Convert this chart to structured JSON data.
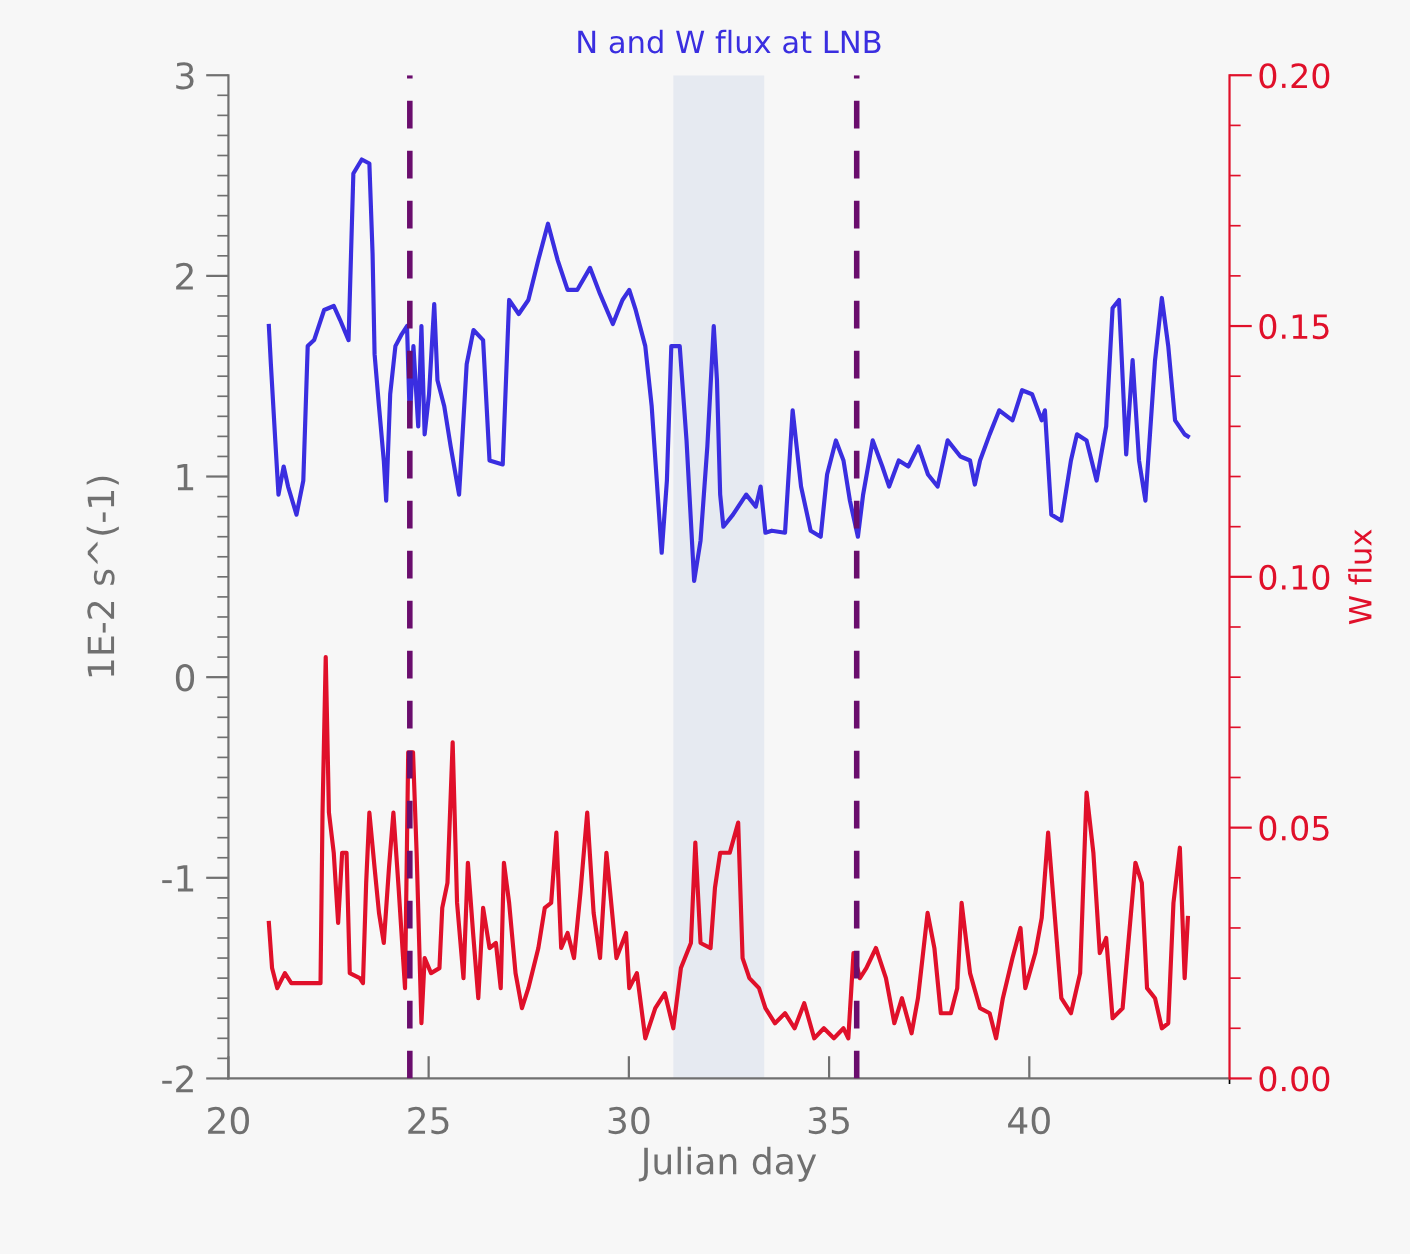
{
  "chart_data": {
    "type": "line",
    "title": "N and W flux at LNB",
    "xlabel": "Julian day",
    "ylabel": "1E-2 s^(-1)",
    "y2label": "W flux",
    "xlim": [
      20,
      45
    ],
    "xticks": [
      20,
      25,
      30,
      35,
      40
    ],
    "ylim": [
      -2,
      3
    ],
    "yticks": [
      -2,
      -1,
      0,
      1,
      2,
      3
    ],
    "y2lim": [
      0,
      0.2
    ],
    "y2ticks": [
      {
        "value": 0,
        "label": "0.00"
      },
      {
        "value": 0.05,
        "label": "0.05"
      },
      {
        "value": 0.1,
        "label": "0.10"
      },
      {
        "value": 0.15,
        "label": "0.15"
      },
      {
        "value": 0.2,
        "label": "0.20"
      }
    ],
    "grid": false,
    "legend": false,
    "marker": "none",
    "line_style": "solid",
    "ref_lines": [
      {
        "axis": "x",
        "value": 24.53,
        "color": "#6a0d6d",
        "line_style": "dashed"
      },
      {
        "axis": "x",
        "value": 35.69,
        "color": "#6a0d6d",
        "line_style": "dashed"
      }
    ],
    "bands": [
      {
        "axis": "x",
        "from": 31.11,
        "to": 33.38,
        "color": "#e6eaf1"
      }
    ],
    "series": [
      {
        "color": "#3a2ee0",
        "x": [
          21.01,
          21.06,
          21.17,
          21.25,
          21.38,
          21.49,
          21.7,
          21.87,
          21.98,
          22.14,
          22.39,
          22.63,
          22.79,
          23.0,
          23.12,
          23.33,
          23.52,
          23.6,
          23.65,
          23.76,
          23.88,
          23.94,
          24.04,
          24.17,
          24.33,
          24.46,
          24.53,
          24.62,
          24.74,
          24.82,
          24.9,
          25.01,
          25.14,
          25.22,
          25.39,
          25.55,
          25.76,
          25.95,
          26.12,
          26.36,
          26.52,
          26.85,
          27.01,
          27.25,
          27.49,
          27.74,
          27.98,
          28.22,
          28.47,
          28.71,
          29.03,
          29.28,
          29.6,
          29.84,
          30.01,
          30.17,
          30.41,
          30.57,
          30.82,
          30.95,
          31.06,
          31.27,
          31.44,
          31.63,
          31.79,
          31.96,
          32.12,
          32.2,
          32.28,
          32.36,
          32.6,
          32.93,
          33.17,
          33.29,
          33.41,
          33.57,
          33.9,
          34.09,
          34.3,
          34.54,
          34.79,
          34.95,
          35.17,
          35.36,
          35.52,
          35.72,
          35.85,
          36.09,
          36.33,
          36.5,
          36.74,
          36.98,
          37.23,
          37.47,
          37.71,
          37.96,
          38.28,
          38.52,
          38.64,
          38.77,
          39.01,
          39.25,
          39.58,
          39.82,
          40.07,
          40.31,
          40.39,
          40.55,
          40.8,
          41.04,
          41.19,
          41.43,
          41.68,
          41.92,
          42.08,
          42.24,
          42.42,
          42.58,
          42.74,
          42.9,
          43.14,
          43.31,
          43.47,
          43.64,
          43.88,
          43.96
        ],
        "values": [
          1.75,
          1.56,
          1.18,
          0.91,
          1.05,
          0.95,
          0.81,
          0.98,
          1.65,
          1.68,
          1.83,
          1.85,
          1.78,
          1.68,
          2.51,
          2.58,
          2.56,
          2.11,
          1.61,
          1.35,
          1.08,
          0.88,
          1.41,
          1.65,
          1.71,
          1.75,
          1.28,
          1.65,
          1.25,
          1.75,
          1.21,
          1.41,
          1.86,
          1.48,
          1.35,
          1.15,
          0.91,
          1.56,
          1.73,
          1.68,
          1.08,
          1.06,
          1.88,
          1.81,
          1.88,
          2.08,
          2.26,
          2.08,
          1.93,
          1.93,
          2.04,
          1.91,
          1.76,
          1.88,
          1.93,
          1.83,
          1.65,
          1.35,
          0.62,
          0.98,
          1.65,
          1.65,
          1.18,
          0.48,
          0.68,
          1.15,
          1.75,
          1.48,
          0.91,
          0.75,
          0.81,
          0.91,
          0.85,
          0.95,
          0.72,
          0.73,
          0.72,
          1.33,
          0.95,
          0.73,
          0.7,
          1.01,
          1.18,
          1.08,
          0.88,
          0.7,
          0.91,
          1.18,
          1.05,
          0.95,
          1.08,
          1.05,
          1.15,
          1.01,
          0.95,
          1.18,
          1.1,
          1.08,
          0.96,
          1.08,
          1.21,
          1.33,
          1.28,
          1.43,
          1.41,
          1.28,
          1.33,
          0.81,
          0.78,
          1.08,
          1.21,
          1.18,
          0.98,
          1.25,
          1.84,
          1.88,
          1.11,
          1.58,
          1.08,
          0.88,
          1.58,
          1.89,
          1.65,
          1.28,
          1.21,
          1.2
        ]
      },
      {
        "color": "#e0102a",
        "axis": "y2",
        "x": [
          21.01,
          21.09,
          21.22,
          21.41,
          21.57,
          22.3,
          22.35,
          22.43,
          22.51,
          22.63,
          22.74,
          22.84,
          22.95,
          23.03,
          23.28,
          23.36,
          23.44,
          23.52,
          23.65,
          23.76,
          23.88,
          24.01,
          24.12,
          24.25,
          24.41,
          24.49,
          24.61,
          24.7,
          24.82,
          24.9,
          25.06,
          25.27,
          25.34,
          25.47,
          25.6,
          25.71,
          25.87,
          25.98,
          26.11,
          26.24,
          26.36,
          26.52,
          26.68,
          26.8,
          26.88,
          27.01,
          27.17,
          27.33,
          27.49,
          27.74,
          27.9,
          28.06,
          28.19,
          28.31,
          28.47,
          28.63,
          28.79,
          28.96,
          29.12,
          29.28,
          29.44,
          29.69,
          29.93,
          30.01,
          30.2,
          30.41,
          30.66,
          30.9,
          31.11,
          31.3,
          31.55,
          31.66,
          31.79,
          32.04,
          32.15,
          32.28,
          32.52,
          32.73,
          32.84,
          33.01,
          33.25,
          33.41,
          33.65,
          33.9,
          34.14,
          34.38,
          34.63,
          34.87,
          35.12,
          35.36,
          35.48,
          35.61,
          35.77,
          35.93,
          36.17,
          36.42,
          36.63,
          36.82,
          37.06,
          37.22,
          37.46,
          37.63,
          37.79,
          38.04,
          38.2,
          38.31,
          38.52,
          38.77,
          39.01,
          39.17,
          39.34,
          39.58,
          39.78,
          39.9,
          40.15,
          40.31,
          40.47,
          40.63,
          40.8,
          41.04,
          41.27,
          41.43,
          41.6,
          41.76,
          41.92,
          42.08,
          42.33,
          42.65,
          42.81,
          42.94,
          43.14,
          43.31,
          43.47,
          43.6,
          43.76,
          43.88,
          43.96
        ],
        "values": [
          0.031,
          0.022,
          0.018,
          0.021,
          0.019,
          0.019,
          0.053,
          0.084,
          0.053,
          0.045,
          0.031,
          0.045,
          0.045,
          0.021,
          0.02,
          0.019,
          0.039,
          0.053,
          0.042,
          0.033,
          0.027,
          0.042,
          0.053,
          0.038,
          0.018,
          0.065,
          0.065,
          0.045,
          0.011,
          0.024,
          0.021,
          0.022,
          0.034,
          0.039,
          0.067,
          0.035,
          0.02,
          0.043,
          0.029,
          0.016,
          0.034,
          0.026,
          0.027,
          0.018,
          0.043,
          0.035,
          0.021,
          0.014,
          0.018,
          0.026,
          0.034,
          0.035,
          0.049,
          0.026,
          0.029,
          0.024,
          0.037,
          0.053,
          0.033,
          0.024,
          0.045,
          0.024,
          0.029,
          0.018,
          0.021,
          0.008,
          0.014,
          0.017,
          0.01,
          0.022,
          0.027,
          0.047,
          0.027,
          0.026,
          0.038,
          0.045,
          0.045,
          0.051,
          0.024,
          0.02,
          0.018,
          0.014,
          0.011,
          0.013,
          0.01,
          0.015,
          0.008,
          0.01,
          0.008,
          0.01,
          0.008,
          0.025,
          0.02,
          0.022,
          0.026,
          0.02,
          0.011,
          0.016,
          0.009,
          0.016,
          0.033,
          0.026,
          0.013,
          0.013,
          0.018,
          0.035,
          0.021,
          0.014,
          0.013,
          0.008,
          0.016,
          0.024,
          0.03,
          0.018,
          0.025,
          0.032,
          0.049,
          0.033,
          0.016,
          0.013,
          0.021,
          0.057,
          0.045,
          0.025,
          0.028,
          0.012,
          0.014,
          0.043,
          0.039,
          0.018,
          0.016,
          0.01,
          0.011,
          0.035,
          0.046,
          0.02,
          0.032
        ]
      }
    ]
  }
}
